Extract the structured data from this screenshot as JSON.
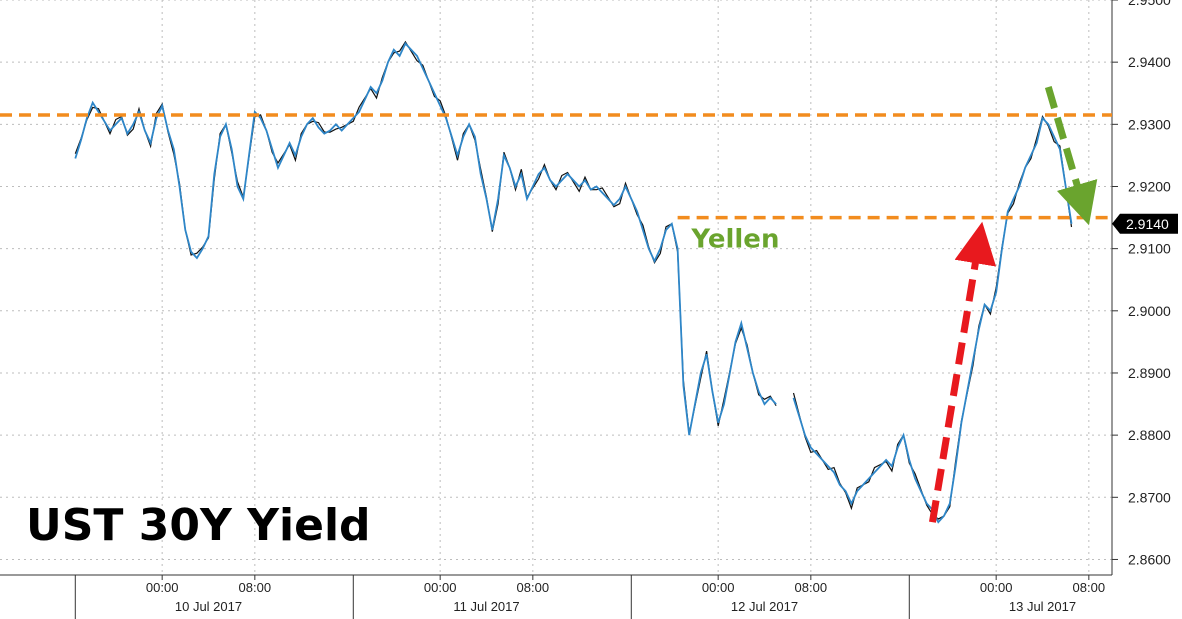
{
  "chart_data": {
    "type": "line",
    "title": "UST 30Y Yield",
    "ylim": [
      2.8575,
      2.95
    ],
    "yticks": [
      "2.8600",
      "2.8700",
      "2.8800",
      "2.8900",
      "2.9000",
      "2.9100",
      "2.9200",
      "2.9300",
      "2.9400",
      "2.9500"
    ],
    "ytick_values": [
      2.86,
      2.87,
      2.88,
      2.89,
      2.9,
      2.91,
      2.92,
      2.93,
      2.94,
      2.95
    ],
    "xlim": [
      -14,
      82
    ],
    "x_time_ticks": [
      {
        "t": 0,
        "label": "00:00"
      },
      {
        "t": 8,
        "label": "08:00"
      },
      {
        "t": 24,
        "label": "00:00"
      },
      {
        "t": 32,
        "label": "08:00"
      },
      {
        "t": 48,
        "label": "00:00"
      },
      {
        "t": 56,
        "label": "08:00"
      },
      {
        "t": 72,
        "label": "00:00"
      },
      {
        "t": 80,
        "label": "08:00"
      }
    ],
    "x_day_labels": [
      {
        "t": 4,
        "label": "10 Jul 2017"
      },
      {
        "t": 28,
        "label": "11 Jul 2017"
      },
      {
        "t": 52,
        "label": "12 Jul 2017"
      },
      {
        "t": 76,
        "label": "13 Jul 2017"
      }
    ],
    "day_separators": [
      -7.5,
      16.5,
      40.5,
      64.5
    ],
    "grid": true,
    "last_value": "2.9140",
    "series": [
      {
        "points": [
          [
            -7.5,
            2.9245
          ],
          [
            -7.0,
            2.9275
          ],
          [
            -6.5,
            2.931
          ],
          [
            -6.0,
            2.9335
          ],
          [
            -5.5,
            2.932
          ],
          [
            -5.0,
            2.9305
          ],
          [
            -4.5,
            2.929
          ],
          [
            -4.0,
            2.93
          ],
          [
            -3.5,
            2.931
          ],
          [
            -3.0,
            2.9285
          ],
          [
            -2.5,
            2.93
          ],
          [
            -2.0,
            2.932
          ],
          [
            -1.5,
            2.929
          ],
          [
            -1.0,
            2.927
          ],
          [
            -0.5,
            2.931
          ],
          [
            0.0,
            2.933
          ],
          [
            0.5,
            2.929
          ],
          [
            1.0,
            2.926
          ],
          [
            1.5,
            2.92
          ],
          [
            2.0,
            2.913
          ],
          [
            2.5,
            2.9095
          ],
          [
            3.0,
            2.9085
          ],
          [
            3.5,
            2.91
          ],
          [
            4.0,
            2.912
          ],
          [
            4.5,
            2.922
          ],
          [
            5.0,
            2.928
          ],
          [
            5.5,
            2.93
          ],
          [
            6.0,
            2.926
          ],
          [
            6.5,
            2.92
          ],
          [
            7.0,
            2.918
          ],
          [
            7.5,
            2.925
          ],
          [
            8.0,
            2.932
          ],
          [
            8.5,
            2.931
          ],
          [
            9.0,
            2.929
          ],
          [
            9.5,
            2.926
          ],
          [
            10.0,
            2.923
          ],
          [
            10.5,
            2.925
          ],
          [
            11.0,
            2.927
          ],
          [
            11.5,
            2.925
          ],
          [
            12.0,
            2.928
          ],
          [
            12.5,
            2.93
          ],
          [
            13.0,
            2.931
          ],
          [
            13.5,
            2.9295
          ],
          [
            14.0,
            2.9285
          ],
          [
            14.5,
            2.929
          ],
          [
            15.0,
            2.93
          ],
          [
            15.5,
            2.929
          ],
          [
            16.0,
            2.93
          ],
          [
            16.5,
            2.931
          ],
          [
            17.0,
            2.932
          ],
          [
            17.5,
            2.934
          ],
          [
            18.0,
            2.936
          ],
          [
            18.5,
            2.935
          ],
          [
            19.0,
            2.937
          ],
          [
            19.5,
            2.94
          ],
          [
            20.0,
            2.942
          ],
          [
            20.5,
            2.941
          ],
          [
            21.0,
            2.943
          ],
          [
            21.5,
            2.942
          ],
          [
            22.0,
            2.941
          ],
          [
            22.5,
            2.939
          ],
          [
            23.0,
            2.937
          ],
          [
            23.5,
            2.935
          ],
          [
            24.0,
            2.933
          ],
          [
            24.5,
            2.931
          ],
          [
            25.0,
            2.928
          ],
          [
            25.5,
            2.925
          ],
          [
            26.0,
            2.928
          ],
          [
            26.5,
            2.93
          ],
          [
            27.0,
            2.928
          ],
          [
            27.5,
            2.922
          ],
          [
            28.0,
            2.918
          ],
          [
            28.5,
            2.913
          ],
          [
            29.0,
            2.918
          ],
          [
            29.5,
            2.925
          ],
          [
            30.0,
            2.923
          ],
          [
            30.5,
            2.92
          ],
          [
            31.0,
            2.922
          ],
          [
            31.5,
            2.918
          ],
          [
            32.0,
            2.92
          ],
          [
            32.5,
            2.922
          ],
          [
            33.0,
            2.923
          ],
          [
            33.5,
            2.921
          ],
          [
            34.0,
            2.92
          ],
          [
            34.5,
            2.921
          ],
          [
            35.0,
            2.922
          ],
          [
            35.5,
            2.921
          ],
          [
            36.0,
            2.92
          ],
          [
            36.5,
            2.921
          ],
          [
            37.0,
            2.9195
          ],
          [
            37.5,
            2.92
          ],
          [
            38.0,
            2.919
          ],
          [
            38.5,
            2.918
          ],
          [
            39.0,
            2.917
          ],
          [
            39.5,
            2.918
          ],
          [
            40.0,
            2.92
          ],
          [
            40.5,
            2.918
          ],
          [
            41.0,
            2.916
          ],
          [
            41.5,
            2.913
          ],
          [
            42.0,
            2.91
          ],
          [
            42.5,
            2.908
          ],
          [
            43.0,
            2.91
          ],
          [
            43.5,
            2.913
          ],
          [
            44.0,
            2.914
          ],
          [
            44.5,
            2.91
          ],
          [
            45.0,
            2.888
          ],
          [
            45.5,
            2.88
          ],
          [
            46.0,
            2.885
          ],
          [
            46.5,
            2.89
          ],
          [
            47.0,
            2.893
          ],
          [
            47.5,
            2.887
          ],
          [
            48.0,
            2.882
          ],
          [
            48.5,
            2.885
          ],
          [
            49.0,
            2.89
          ],
          [
            49.5,
            2.895
          ],
          [
            50.0,
            2.898
          ],
          [
            50.5,
            2.894
          ],
          [
            51.0,
            2.89
          ],
          [
            51.5,
            2.887
          ],
          [
            52.0,
            2.885
          ],
          [
            52.5,
            2.886
          ],
          [
            53.0,
            2.885
          ],
          null,
          [
            54.5,
            2.886
          ],
          [
            55.0,
            2.883
          ],
          [
            55.5,
            2.88
          ],
          [
            56.0,
            2.878
          ],
          [
            56.5,
            2.877
          ],
          [
            57.0,
            2.876
          ],
          [
            57.5,
            2.875
          ],
          [
            58.0,
            2.874
          ],
          [
            58.5,
            2.872
          ],
          [
            59.0,
            2.871
          ],
          [
            59.5,
            2.869
          ],
          [
            60.0,
            2.871
          ],
          [
            60.5,
            2.872
          ],
          [
            61.0,
            2.873
          ],
          [
            61.5,
            2.874
          ],
          [
            62.0,
            2.875
          ],
          [
            62.5,
            2.876
          ],
          [
            63.0,
            2.875
          ],
          [
            63.5,
            2.878
          ],
          [
            64.0,
            2.88
          ],
          [
            64.5,
            2.876
          ],
          [
            65.0,
            2.873
          ],
          [
            65.5,
            2.871
          ],
          [
            66.0,
            2.869
          ],
          [
            66.5,
            2.868
          ],
          [
            67.0,
            2.866
          ],
          [
            67.5,
            2.867
          ],
          [
            68.0,
            2.869
          ],
          [
            68.5,
            2.875
          ],
          [
            69.0,
            2.882
          ],
          [
            69.5,
            2.887
          ],
          [
            70.0,
            2.892
          ],
          [
            70.5,
            2.897
          ],
          [
            71.0,
            2.901
          ],
          [
            71.5,
            2.9
          ],
          [
            72.0,
            2.903
          ],
          [
            72.5,
            2.91
          ],
          [
            73.0,
            2.916
          ],
          [
            73.5,
            2.918
          ],
          [
            74.0,
            2.92
          ],
          [
            74.5,
            2.923
          ],
          [
            75.0,
            2.925
          ],
          [
            75.5,
            2.927
          ],
          [
            76.0,
            2.931
          ],
          [
            76.5,
            2.93
          ],
          [
            77.0,
            2.928
          ],
          [
            77.5,
            2.926
          ],
          [
            78.0,
            2.92
          ],
          [
            78.5,
            2.914
          ]
        ]
      }
    ],
    "reference_lines": [
      {
        "y": 2.9315,
        "from": -14,
        "to": 82,
        "color": "#F28C1E"
      },
      {
        "y": 2.915,
        "from": 44.5,
        "to": 82,
        "color": "#F28C1E"
      }
    ],
    "annotations": {
      "yellen_label": {
        "text": "Yellen",
        "x": 45,
        "y": 2.9105,
        "color": "#6AA42E"
      },
      "up_arrow": {
        "from": [
          66.5,
          2.866
        ],
        "to": [
          70.5,
          2.911
        ],
        "color": "#E8191E"
      },
      "down_arrow": {
        "from": [
          76.5,
          2.936
        ],
        "to": [
          79.5,
          2.917
        ],
        "color": "#6AA42E"
      }
    }
  }
}
